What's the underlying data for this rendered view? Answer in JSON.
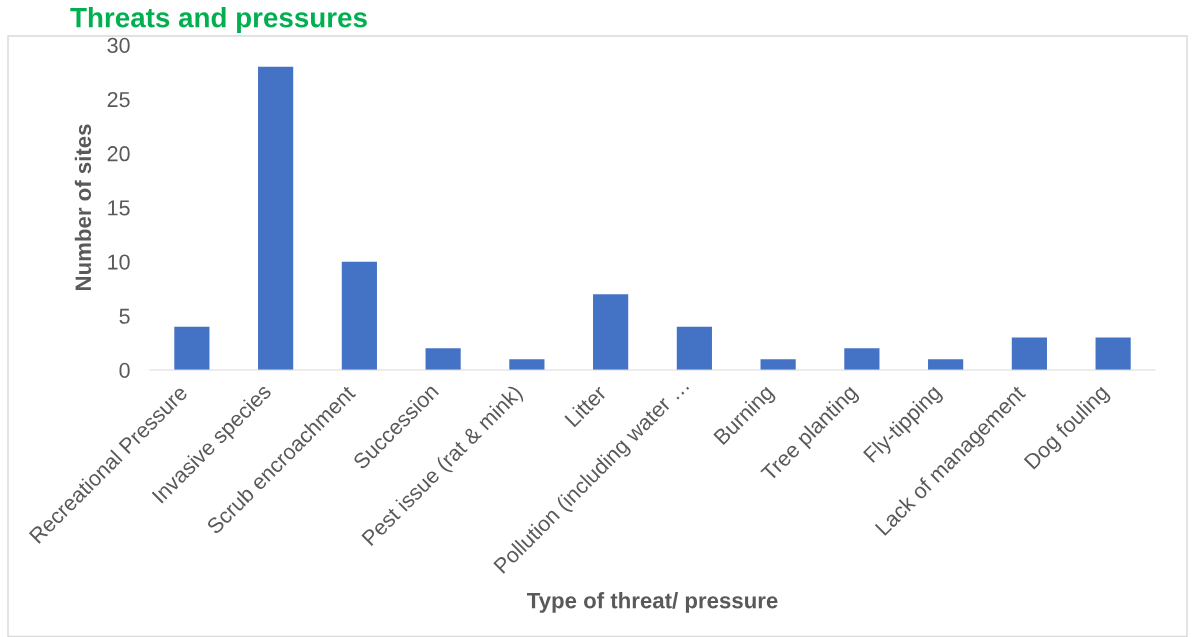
{
  "chart_data": {
    "type": "bar",
    "title": "Threats and pressures",
    "xlabel": "Type of threat/ pressure",
    "ylabel": "Number of sites",
    "categories": [
      "Recreational Pressure",
      "Invasive species",
      "Scrub encroachment",
      "Succession",
      "Pest issue (rat & mink)",
      "Litter",
      "Pollution (including water …",
      "Burning",
      "Tree planting",
      "Fly-tipping",
      "Lack of management",
      "Dog fouling"
    ],
    "values": [
      4,
      28,
      10,
      2,
      1,
      7,
      4,
      1,
      2,
      1,
      3,
      3
    ],
    "color": "#4472c4",
    "ylim": [
      0,
      30
    ],
    "yticks": [
      0,
      5,
      10,
      15,
      20,
      25,
      30
    ],
    "grid": false,
    "legend": false
  }
}
